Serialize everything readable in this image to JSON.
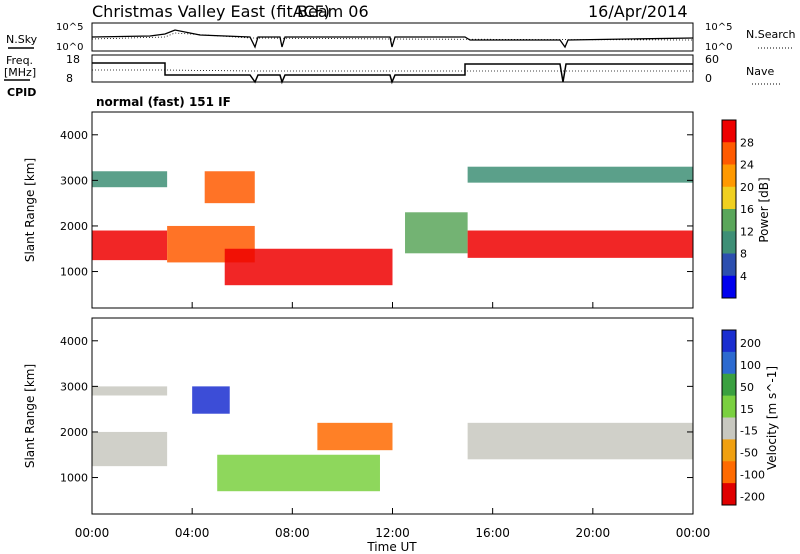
{
  "header": {
    "title": "Christmas Valley East (fitACF)",
    "beam": "Beam 06",
    "date": "16/Apr/2014"
  },
  "top_panels": {
    "nsky_label": "N.Sky",
    "nsearch_label": "N.Search",
    "noise_ticks_left": [
      "10^5",
      "10^0"
    ],
    "noise_ticks_right": [
      "10^5",
      "10^0"
    ],
    "freq_label_1": "Freq.",
    "freq_label_2": "[MHz]",
    "freq_ticks": [
      "18",
      "8"
    ],
    "nave_label": "Nave",
    "nave_ticks": [
      "60",
      "0"
    ],
    "cpid_label": "CPID",
    "cpid_value": "normal (fast) 151 IF"
  },
  "chart_data": [
    {
      "type": "heatmap",
      "name": "power",
      "ylabel": "Slant Range [km]",
      "yticks": [
        "1000",
        "2000",
        "3000",
        "4000"
      ],
      "ylim": [
        200,
        4500
      ],
      "xlim": [
        0,
        24
      ],
      "colorbar_label": "Power [dB]",
      "colorbar_ticks": [
        "4",
        "8",
        "12",
        "16",
        "20",
        "24",
        "28"
      ],
      "colors": [
        "#0000ee",
        "#2c4faf",
        "#3e8f76",
        "#5aa65a",
        "#f0d020",
        "#ff9900",
        "#ff5a00",
        "#ee0000"
      ],
      "bands": [
        {
          "t0": 0,
          "t1": 3,
          "r0": 1250,
          "r1": 1900,
          "level": 7
        },
        {
          "t0": 0,
          "t1": 3,
          "r0": 2850,
          "r1": 3200,
          "level": 2
        },
        {
          "t0": 3,
          "t1": 6.5,
          "r0": 1200,
          "r1": 2000,
          "level": 6
        },
        {
          "t0": 4.5,
          "t1": 6.5,
          "r0": 2500,
          "r1": 3200,
          "level": 6
        },
        {
          "t0": 5.3,
          "t1": 12,
          "r0": 700,
          "r1": 1500,
          "level": 7
        },
        {
          "t0": 12.5,
          "t1": 15,
          "r0": 1400,
          "r1": 2300,
          "level": 3
        },
        {
          "t0": 15,
          "t1": 24,
          "r0": 1300,
          "r1": 1900,
          "level": 7
        },
        {
          "t0": 15,
          "t1": 24,
          "r0": 2950,
          "r1": 3300,
          "level": 2
        }
      ]
    },
    {
      "type": "heatmap",
      "name": "velocity",
      "ylabel": "Slant Range [km]",
      "yticks": [
        "1000",
        "2000",
        "3000",
        "4000"
      ],
      "ylim": [
        200,
        4500
      ],
      "xlim": [
        0,
        24
      ],
      "xlabel": "Time UT",
      "xticks": [
        "00:00",
        "04:00",
        "08:00",
        "12:00",
        "16:00",
        "20:00",
        "00:00"
      ],
      "colorbar_label": "Velocity [m s^-1]",
      "colorbar_ticks": [
        "200",
        "100",
        "50",
        "15",
        "-15",
        "-50",
        "-100",
        "-200"
      ],
      "colors": [
        "#1a2ed0",
        "#2c6ad0",
        "#3aa040",
        "#7ad040",
        "#c8c8c0",
        "#f0a010",
        "#ff6a00",
        "#e00000"
      ],
      "bands": [
        {
          "t0": 0,
          "t1": 3,
          "r0": 1250,
          "r1": 2000,
          "level": 4
        },
        {
          "t0": 0,
          "t1": 3,
          "r0": 2800,
          "r1": 3000,
          "level": 4
        },
        {
          "t0": 4,
          "t1": 5.5,
          "r0": 2400,
          "r1": 3000,
          "level": 0
        },
        {
          "t0": 5,
          "t1": 11.5,
          "r0": 700,
          "r1": 1500,
          "level": 3
        },
        {
          "t0": 9,
          "t1": 12,
          "r0": 1600,
          "r1": 2200,
          "level": 6
        },
        {
          "t0": 15,
          "t1": 24,
          "r0": 1400,
          "r1": 2200,
          "level": 4
        }
      ]
    }
  ]
}
